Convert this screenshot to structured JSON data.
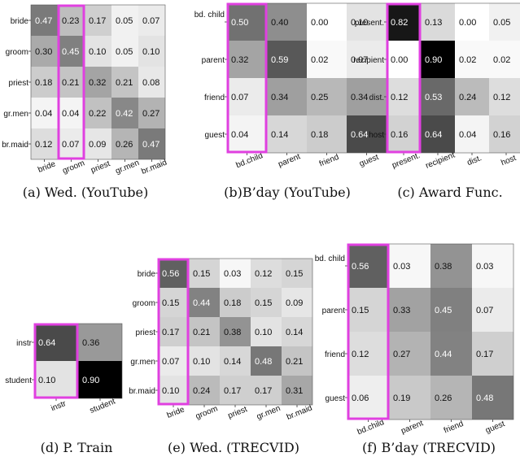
{
  "chart_data": [
    {
      "type": "heatmap",
      "caption": "(a) Wed. (YouTube)",
      "row_labels": [
        "bride",
        "groom",
        "priest",
        "gr.men",
        "br.maid"
      ],
      "col_labels": [
        "bride",
        "groom",
        "priest",
        "gr.men",
        "br.maid"
      ],
      "values": [
        [
          0.47,
          0.23,
          0.17,
          0.05,
          0.07
        ],
        [
          0.3,
          0.45,
          0.1,
          0.05,
          0.1
        ],
        [
          0.18,
          0.21,
          0.32,
          0.21,
          0.08
        ],
        [
          0.04,
          0.04,
          0.22,
          0.42,
          0.27
        ],
        [
          0.12,
          0.07,
          0.09,
          0.26,
          0.47
        ]
      ],
      "highlight_col": 1,
      "highlight_color": "#e040e0"
    },
    {
      "type": "heatmap",
      "caption": "(b)B’day (YouTube)",
      "row_labels": [
        "bd. child",
        "parent",
        "friend",
        "guest"
      ],
      "col_labels": [
        "bd.child",
        "parent",
        "friend",
        "guest"
      ],
      "values": [
        [
          0.5,
          0.4,
          0.0,
          0.1
        ],
        [
          0.32,
          0.59,
          0.02,
          0.07
        ],
        [
          0.07,
          0.34,
          0.25,
          0.34
        ],
        [
          0.04,
          0.14,
          0.18,
          0.64
        ]
      ],
      "highlight_col": 0,
      "highlight_color": "#e040e0"
    },
    {
      "type": "heatmap",
      "caption": "(c) Award Func.",
      "row_labels": [
        "present.",
        "recipient",
        "dist.",
        "host"
      ],
      "col_labels": [
        "present.",
        "recipient",
        "dist.",
        "host"
      ],
      "values": [
        [
          0.82,
          0.13,
          0.0,
          0.05
        ],
        [
          0.0,
          0.9,
          0.02,
          0.02
        ],
        [
          0.12,
          0.53,
          0.24,
          0.12
        ],
        [
          0.16,
          0.64,
          0.04,
          0.16
        ]
      ],
      "highlight_col": 0,
      "highlight_color": "#e040e0"
    },
    {
      "type": "heatmap",
      "caption": "(d) P. Train",
      "row_labels": [
        "instr",
        "student"
      ],
      "col_labels": [
        "instr",
        "student"
      ],
      "values": [
        [
          0.64,
          0.36
        ],
        [
          0.1,
          0.9
        ]
      ],
      "highlight_col": 0,
      "highlight_color": "#e040e0"
    },
    {
      "type": "heatmap",
      "caption": "(e) Wed. (TRECVID)",
      "row_labels": [
        "bride",
        "groom",
        "priest",
        "gr.men",
        "br.maid"
      ],
      "col_labels": [
        "bride",
        "groom",
        "priest",
        "gr.men",
        "br.maid"
      ],
      "values": [
        [
          0.56,
          0.15,
          0.03,
          0.12,
          0.15
        ],
        [
          0.15,
          0.44,
          0.18,
          0.15,
          0.09
        ],
        [
          0.17,
          0.21,
          0.38,
          0.1,
          0.14
        ],
        [
          0.07,
          0.1,
          0.14,
          0.48,
          0.21
        ],
        [
          0.1,
          0.24,
          0.17,
          0.17,
          0.31
        ]
      ],
      "highlight_col": 0,
      "highlight_color": "#e040e0"
    },
    {
      "type": "heatmap",
      "caption": "(f) B’day (TRECVID)",
      "row_labels": [
        "bd. child",
        "parent",
        "friend",
        "guest"
      ],
      "col_labels": [
        "bd.child",
        "parent",
        "friend",
        "guest"
      ],
      "values": [
        [
          0.56,
          0.03,
          0.38,
          0.03
        ],
        [
          0.15,
          0.33,
          0.45,
          0.07
        ],
        [
          0.12,
          0.27,
          0.44,
          0.17
        ],
        [
          0.06,
          0.19,
          0.26,
          0.48
        ]
      ],
      "highlight_col": 0,
      "highlight_color": "#e040e0"
    }
  ]
}
